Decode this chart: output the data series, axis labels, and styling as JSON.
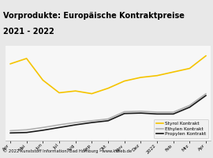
{
  "title_line1": "Vorprodukte: Europäische Kontraktpreise",
  "title_line2": "2021 - 2022",
  "title_bg_color": "#f5c400",
  "footer": "© 2022 Kunststoff Information, Bad Homburg - www.kiweb.de",
  "x_labels": [
    "Apr",
    "Mai",
    "Jun",
    "Jul",
    "Aug",
    "Sep",
    "Okt",
    "Nov",
    "Dez",
    "2022",
    "Feb",
    "Mrz",
    "Apr"
  ],
  "styrol": [
    1050,
    1110,
    870,
    730,
    750,
    720,
    780,
    860,
    900,
    920,
    960,
    1000,
    1140
  ],
  "ethylen": [
    310,
    320,
    345,
    375,
    400,
    420,
    440,
    520,
    525,
    515,
    515,
    590,
    720
  ],
  "propylen": [
    285,
    290,
    315,
    345,
    375,
    400,
    420,
    500,
    505,
    495,
    495,
    570,
    700
  ],
  "styrol_color": "#f5c400",
  "ethylen_color": "#b0b0b0",
  "propylen_color": "#1a1a1a",
  "plot_bg_color": "#f7f7f7",
  "chart_bg_color": "#e8e8e8",
  "legend_labels": [
    "Styrol Kontrakt",
    "Ethylen Kontrakt",
    "Propylen Kontrakt"
  ],
  "footer_bg": "#909090",
  "title_fontsize": 7.0,
  "footer_fontsize": 3.8,
  "tick_fontsize": 4.2,
  "legend_fontsize": 4.2
}
